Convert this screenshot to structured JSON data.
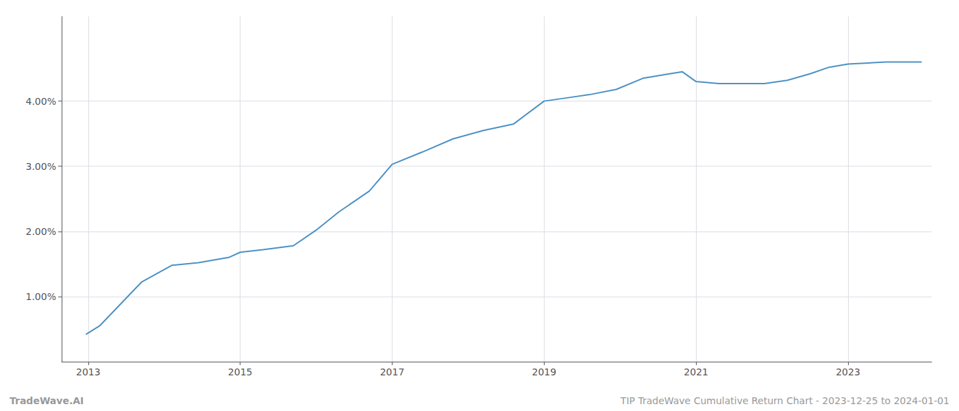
{
  "chart_data": {
    "type": "line",
    "x": [
      2012.97,
      2013.15,
      2013.7,
      2014.1,
      2014.45,
      2014.85,
      2015.0,
      2015.3,
      2015.7,
      2016.0,
      2016.3,
      2016.7,
      2017.0,
      2017.4,
      2017.8,
      2018.2,
      2018.6,
      2019.0,
      2019.3,
      2019.6,
      2019.95,
      2020.3,
      2020.65,
      2020.82,
      2021.0,
      2021.3,
      2021.6,
      2021.9,
      2022.2,
      2022.5,
      2022.75,
      2023.0,
      2023.5,
      2023.97
    ],
    "values": [
      0.42,
      0.55,
      1.22,
      1.48,
      1.52,
      1.6,
      1.68,
      1.72,
      1.78,
      2.02,
      2.3,
      2.62,
      3.03,
      3.22,
      3.42,
      3.55,
      3.65,
      4.0,
      4.05,
      4.1,
      4.18,
      4.35,
      4.42,
      4.45,
      4.3,
      4.27,
      4.27,
      4.27,
      4.32,
      4.42,
      4.52,
      4.57,
      4.6,
      4.6
    ],
    "color": "#4a90c4",
    "xlim": [
      2012.65,
      2024.1
    ],
    "ylim": [
      0.0,
      5.3
    ],
    "xticks": [
      2013,
      2015,
      2017,
      2019,
      2021,
      2023
    ],
    "yticks": [
      {
        "value": 1.0,
        "label": "1.00%"
      },
      {
        "value": 2.0,
        "label": "2.00%"
      },
      {
        "value": 3.0,
        "label": "3.00%"
      },
      {
        "value": 4.0,
        "label": "4.00%"
      }
    ],
    "grid": true,
    "annotations": [
      "TradeWave.AI",
      "TIP TradeWave Cumulative Return Chart - 2023-12-25 to 2024-01-01"
    ]
  }
}
